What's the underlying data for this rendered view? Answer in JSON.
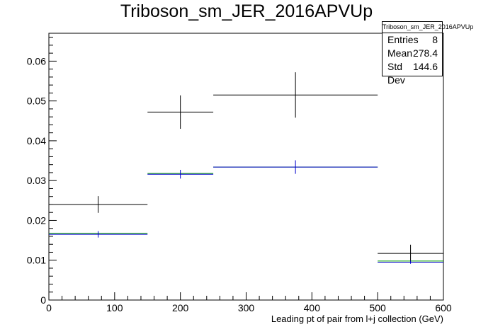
{
  "chart_data": {
    "type": "bar",
    "title": "Triboson_sm_JER_2016APVUp",
    "xlabel": "Leading pt of pair from l+j collection (GeV)",
    "ylabel": "",
    "xlim": [
      0,
      600
    ],
    "ylim": [
      0,
      0.067
    ],
    "x_ticks": [
      "0",
      "100",
      "200",
      "300",
      "400",
      "500",
      "600"
    ],
    "y_ticks": [
      "0",
      "0.01",
      "0.02",
      "0.03",
      "0.04",
      "0.05",
      "0.06"
    ],
    "bin_edges": [
      0,
      150,
      250,
      500,
      600
    ],
    "series": [
      {
        "color": "#000000",
        "values": [
          0.024,
          0.0472,
          0.0515,
          0.0117
        ],
        "errors": [
          0.0021,
          0.0042,
          0.0057,
          0.0022
        ]
      },
      {
        "color": "#009900",
        "values": [
          0.0168,
          0.0318,
          0.0334,
          0.0098
        ],
        "errors": [
          0.0,
          0.0,
          0.0,
          0.0
        ]
      },
      {
        "color": "#0000cc",
        "values": [
          0.0165,
          0.0316,
          0.0334,
          0.0095
        ],
        "errors": [
          0.0008,
          0.0011,
          0.0017,
          0.0004
        ]
      }
    ],
    "grid": false,
    "legend": "none"
  },
  "stats": {
    "header": "Triboson_sm_JER_2016APVUp",
    "entries_label": "Entries",
    "entries_value": "8",
    "mean_label": "Mean",
    "mean_value": "278.4",
    "stddev_label": "Std Dev",
    "stddev_value": "144.6"
  }
}
